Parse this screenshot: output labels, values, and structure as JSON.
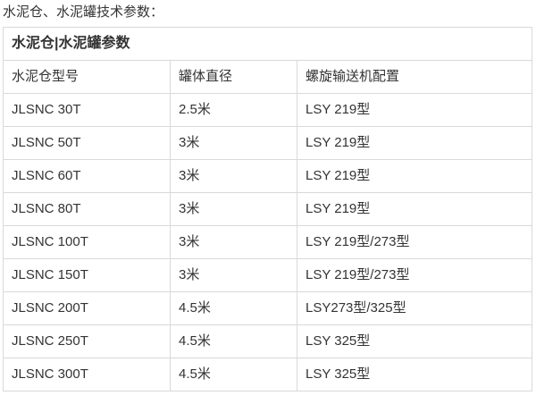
{
  "page": {
    "intro_text": "水泥仓、水泥罐技术参数："
  },
  "table": {
    "title": "水泥仓|水泥罐参数",
    "columns": [
      "水泥仓型号",
      "罐体直径",
      "螺旋输送机配置"
    ],
    "rows": [
      [
        "JLSNC 30T",
        "2.5米",
        "LSY 219型"
      ],
      [
        "JLSNC 50T",
        "3米",
        "LSY 219型"
      ],
      [
        "JLSNC 60T",
        "3米",
        "LSY 219型"
      ],
      [
        "JLSNC 80T",
        "3米",
        "LSY 219型"
      ],
      [
        "JLSNC 100T",
        "3米",
        "LSY 219型/273型"
      ],
      [
        "JLSNC 150T",
        "3米",
        "LSY 219型/273型"
      ],
      [
        "JLSNC 200T",
        "4.5米",
        "LSY273型/325型"
      ],
      [
        "JLSNC 250T",
        "4.5米",
        "LSY 325型"
      ],
      [
        "JLSNC 300T",
        "4.5米",
        "LSY 325型"
      ]
    ],
    "colors": {
      "border": "#d9d9d9",
      "text": "#333333",
      "background": "#ffffff"
    }
  }
}
